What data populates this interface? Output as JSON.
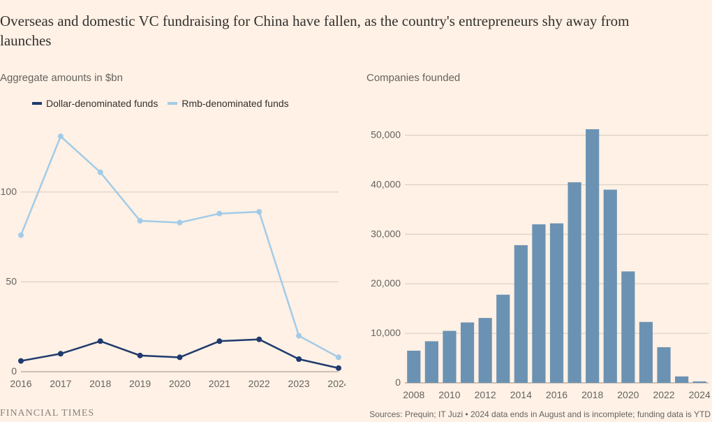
{
  "title": "Overseas and domestic VC fundraising for China have fallen, as the country's entrepreneurs shy away from launches",
  "left_chart": {
    "subtitle": "Aggregate amounts in $bn",
    "type": "line",
    "legend": [
      {
        "label": "Dollar-denominated funds",
        "color": "#1f3a6e"
      },
      {
        "label": "Rmb-denominated funds",
        "color": "#a2cbe8"
      }
    ],
    "x_labels": [
      "2016",
      "2017",
      "2018",
      "2019",
      "2020",
      "2021",
      "2022",
      "2023",
      "2024"
    ],
    "y_ticks": [
      0,
      50,
      100
    ],
    "ylim": [
      0,
      140
    ],
    "series": [
      {
        "name": "Dollar-denominated funds",
        "color": "#1f3a6e",
        "values": [
          6,
          10,
          17,
          9,
          8,
          17,
          18,
          7,
          2
        ],
        "marker": "circle",
        "line_width": 2.5,
        "marker_size": 4
      },
      {
        "name": "Rmb-denominated funds",
        "color": "#a2cbe8",
        "values": [
          76,
          131,
          111,
          84,
          83,
          88,
          89,
          20,
          8
        ],
        "marker": "circle",
        "line_width": 2.5,
        "marker_size": 4
      }
    ],
    "background_color": "#fff1e5",
    "grid_color": "#d4c9bf",
    "axis_fontsize": 14
  },
  "right_chart": {
    "subtitle": "Companies founded",
    "type": "bar",
    "x_ticks": [
      "2008",
      "2010",
      "2012",
      "2014",
      "2016",
      "2018",
      "2020",
      "2022",
      "2024"
    ],
    "years": [
      2008,
      2009,
      2010,
      2011,
      2012,
      2013,
      2014,
      2015,
      2016,
      2017,
      2018,
      2019,
      2020,
      2021,
      2022,
      2023,
      2024
    ],
    "values": [
      6500,
      8400,
      10500,
      12200,
      13100,
      17800,
      27800,
      32000,
      32200,
      40500,
      51200,
      39000,
      22500,
      12300,
      7200,
      1300,
      300
    ],
    "y_ticks": [
      0,
      10000,
      20000,
      30000,
      40000,
      50000
    ],
    "y_labels": [
      "0",
      "10,000",
      "20,000",
      "30,000",
      "40,000",
      "50,000"
    ],
    "ylim": [
      0,
      55000
    ],
    "bar_color": "#6b92b2",
    "bar_width_ratio": 0.75,
    "background_color": "#fff1e5",
    "grid_color": "#d4c9bf",
    "axis_fontsize": 14
  },
  "footer": {
    "logo": "FINANCIAL TIMES",
    "sources": "Sources: Prequin; IT Juzi • 2024 data ends in August and is incomplete; funding data is YTD"
  }
}
